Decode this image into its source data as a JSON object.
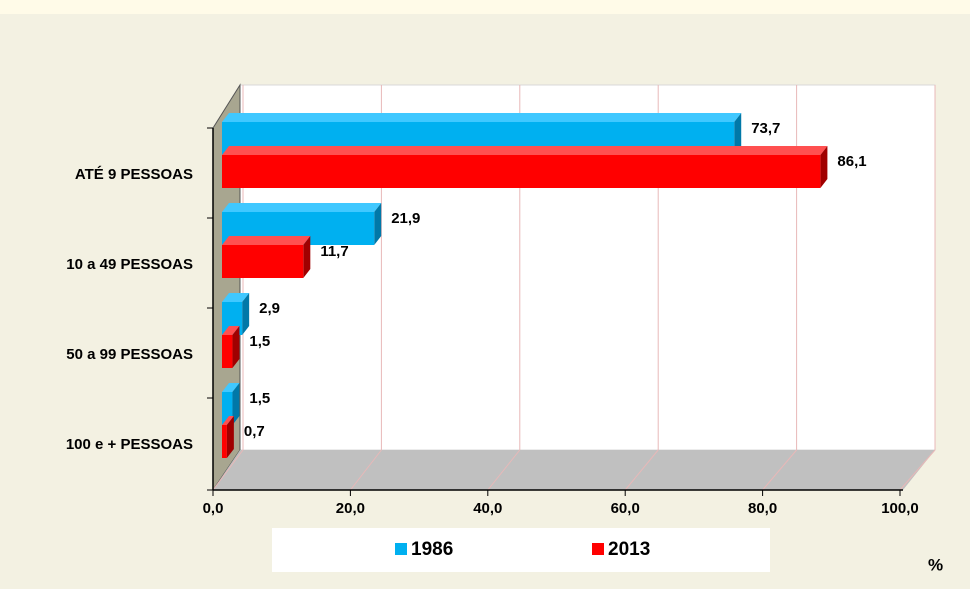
{
  "chart_data": {
    "type": "bar",
    "orientation": "horizontal",
    "categories": [
      "ATÉ 9 PESSOAS",
      "10 a 49 PESSOAS",
      "50 a 99 PESSOAS",
      "100 e + PESSOAS"
    ],
    "series": [
      {
        "name": "1986",
        "color": "#00b0f0",
        "values": [
          73.7,
          21.9,
          2.9,
          1.5
        ],
        "value_labels": [
          "73,7",
          "21,9",
          "2,9",
          "1,5"
        ]
      },
      {
        "name": "2013",
        "color": "#ff0000",
        "values": [
          86.1,
          11.7,
          1.5,
          0.7
        ],
        "value_labels": [
          "86,1",
          "11,7",
          "1,5",
          "0,7"
        ]
      }
    ],
    "xlim": [
      0,
      100
    ],
    "xticks": [
      {
        "value": 0,
        "label": "0,0"
      },
      {
        "value": 20,
        "label": "20,0"
      },
      {
        "value": 40,
        "label": "40,0"
      },
      {
        "value": 60,
        "label": "60,0"
      },
      {
        "value": 80,
        "label": "80,0"
      },
      {
        "value": 100,
        "label": "100,0"
      }
    ],
    "x_label": "%",
    "grid": true,
    "legend": "bottom"
  }
}
